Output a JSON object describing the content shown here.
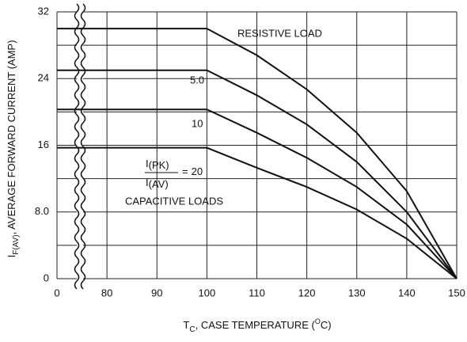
{
  "chart_data": {
    "type": "line",
    "x_label": {
      "main": "T",
      "sub": "C",
      "rest": ", CASE TEMPERATURE (",
      "sup": "O",
      "end": "C)"
    },
    "y_label": {
      "main": "I",
      "sub": "F(AV)",
      "rest": ", AVERAGE FORWARD CURRENT (AMP)"
    },
    "x": [
      0,
      100,
      110,
      120,
      130,
      140,
      150
    ],
    "series": [
      {
        "name": "RESISTIVE LOAD",
        "color": "#111111",
        "values": [
          30,
          30,
          26.8,
          22.7,
          17.5,
          10.5,
          0
        ]
      },
      {
        "name": "5.0",
        "color": "#111111",
        "values": [
          25,
          25,
          22,
          18.5,
          14,
          8,
          0
        ]
      },
      {
        "name": "10",
        "color": "#111111",
        "values": [
          20.3,
          20.3,
          17.5,
          14.5,
          11,
          6.5,
          0
        ]
      },
      {
        "name": "20",
        "color": "#111111",
        "values": [
          15.7,
          15.7,
          13.3,
          11,
          8.3,
          4.8,
          0
        ]
      }
    ],
    "annotations": {
      "ratio_num": "I",
      "ratio_num_sub": "(PK)",
      "ratio_den": "I",
      "ratio_den_sub": "(AV)",
      "ratio_eq": "=",
      "capacitive": "CAPACITIVE LOADS"
    },
    "xlim": [
      0,
      150
    ],
    "x_axis_break": {
      "from": 0,
      "to": 70
    },
    "xticks": [
      0,
      80,
      90,
      100,
      110,
      120,
      130,
      140,
      150
    ],
    "ylim": [
      0,
      32
    ],
    "yticks": [
      0,
      {
        "value": 8,
        "label": "8.0"
      },
      16,
      24,
      32
    ],
    "y_minor_grid": [
      4,
      12,
      20,
      28
    ],
    "grid": true
  }
}
